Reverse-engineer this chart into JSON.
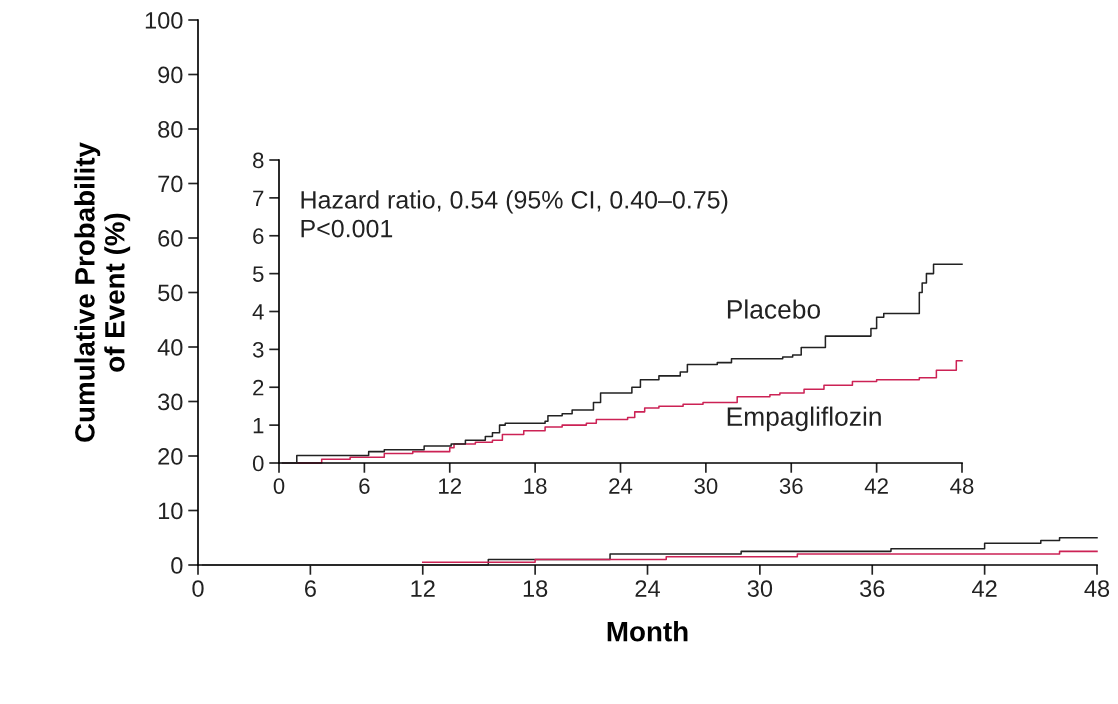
{
  "chart_data": [
    {
      "type": "step",
      "xlabel": "Month",
      "ylabel": "Cumulative Probability\nof Event (%)",
      "xlim": [
        0,
        48
      ],
      "xticks": [
        0,
        6,
        12,
        18,
        24,
        30,
        36,
        42,
        48
      ],
      "ylim": [
        0,
        100
      ],
      "yticks": [
        0,
        10,
        20,
        30,
        40,
        50,
        60,
        70,
        80,
        90,
        100
      ],
      "grid": false,
      "series": [
        {
          "color": "#222222",
          "x": [
            0.25,
            15.5,
            22,
            26,
            29,
            37,
            42,
            45,
            46,
            48
          ],
          "values": [
            0,
            1,
            2,
            2,
            2.5,
            3,
            4,
            4.5,
            5,
            5
          ]
        },
        {
          "color": "#cc2255",
          "x": [
            12,
            18,
            25,
            32,
            38,
            46,
            48
          ],
          "values": [
            0.5,
            1,
            1.5,
            2,
            2,
            2.5,
            2.5
          ]
        }
      ]
    },
    {
      "type": "step",
      "xlim": [
        0,
        48
      ],
      "xticks": [
        0,
        6,
        12,
        18,
        24,
        30,
        36,
        42,
        48
      ],
      "ylim": [
        0,
        8
      ],
      "yticks": [
        0,
        1,
        2,
        3,
        4,
        5,
        6,
        7,
        8
      ],
      "grid": false,
      "annotations": [
        "Hazard ratio, 0.54 (95% CI, 0.40–0.75)\nP<0.001"
      ],
      "series": [
        {
          "name": "Placebo",
          "color": "#222222",
          "x": [
            0.25,
            1.25,
            6.3,
            7.4,
            10.2,
            12.1,
            13.1,
            14.5,
            15,
            15.5,
            15.9,
            18.7,
            18.9,
            19.9,
            20.6,
            22.1,
            22.6,
            24.8,
            25.4,
            26.7,
            28.2,
            28.7,
            30.8,
            31.8,
            35.4,
            36.1,
            36.7,
            38.4,
            41.6,
            42,
            42.5,
            45,
            45.2,
            45.5,
            46,
            48
          ],
          "values": [
            0,
            0.2,
            0.3,
            0.35,
            0.45,
            0.5,
            0.6,
            0.7,
            0.8,
            1.0,
            1.05,
            1.1,
            1.25,
            1.3,
            1.4,
            1.6,
            1.85,
            2.0,
            2.2,
            2.3,
            2.4,
            2.6,
            2.65,
            2.75,
            2.8,
            2.85,
            3.05,
            3.35,
            3.55,
            3.85,
            3.95,
            4.5,
            4.75,
            5.0,
            5.25,
            5.25
          ]
        },
        {
          "name": "Empagliflozin",
          "color": "#cc2255",
          "x": [
            0.25,
            3,
            5,
            7.4,
            9.4,
            12,
            12.3,
            13.8,
            15,
            15.7,
            17.2,
            18.7,
            19.9,
            21.6,
            22.3,
            24.5,
            25,
            25.7,
            26.7,
            28.4,
            29.8,
            32.2,
            34.5,
            35.2,
            36.9,
            38.3,
            40.3,
            42,
            45,
            46.2,
            47.6,
            48
          ],
          "values": [
            0,
            0.1,
            0.15,
            0.25,
            0.3,
            0.4,
            0.5,
            0.55,
            0.6,
            0.75,
            0.85,
            0.95,
            1.0,
            1.05,
            1.15,
            1.2,
            1.35,
            1.45,
            1.5,
            1.55,
            1.6,
            1.75,
            1.8,
            1.85,
            1.95,
            2.05,
            2.15,
            2.2,
            2.25,
            2.45,
            2.7,
            2.7
          ]
        }
      ]
    }
  ]
}
